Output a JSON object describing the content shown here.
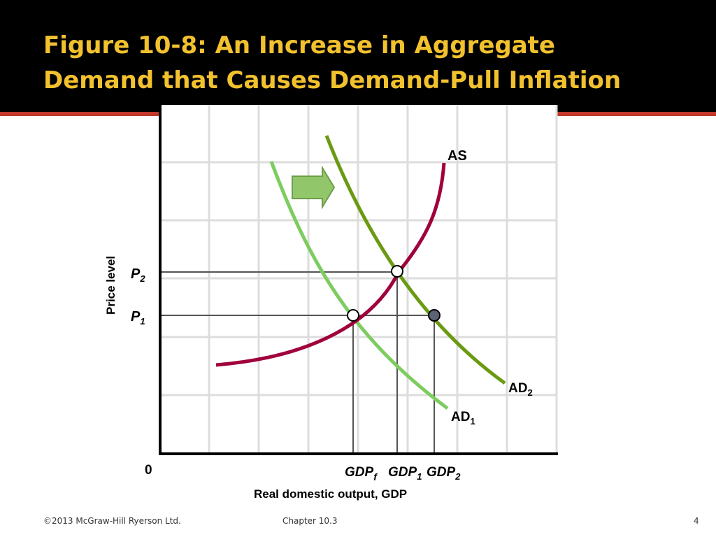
{
  "slide": {
    "title_line1": "Figure 10-8: An Increase in Aggregate",
    "title_line2": "Demand that Causes Demand-Pull Inflation",
    "footer_left": "©2013 McGraw-Hill Ryerson Ltd.",
    "footer_center": "Chapter 10.3",
    "page_number": "4"
  },
  "diagram": {
    "y_axis_label": "Price level",
    "x_axis_label": "Real domestic output, GDP",
    "origin_label": "0",
    "price_labels": [
      {
        "main": "P",
        "sub": "2"
      },
      {
        "main": "P",
        "sub": "1"
      }
    ],
    "gdp_labels": [
      {
        "main": "GDP",
        "sub": "f"
      },
      {
        "main": "GDP",
        "sub": "1"
      },
      {
        "main": "GDP",
        "sub": "2"
      }
    ],
    "curves": {
      "as": {
        "main": "AS",
        "sub": ""
      },
      "ad2": {
        "main": "AD",
        "sub": "2"
      },
      "ad1": {
        "main": "AD",
        "sub": "1"
      }
    },
    "colors": {
      "title": "#f2c12e",
      "accent_rule": "#c0392b",
      "as_curve": "#a0003c",
      "ad1_curve": "#7dcc5f",
      "ad2_curve": "#6a9a12",
      "arrow_fill": "#92c66b",
      "grid": "#dddddd"
    }
  }
}
